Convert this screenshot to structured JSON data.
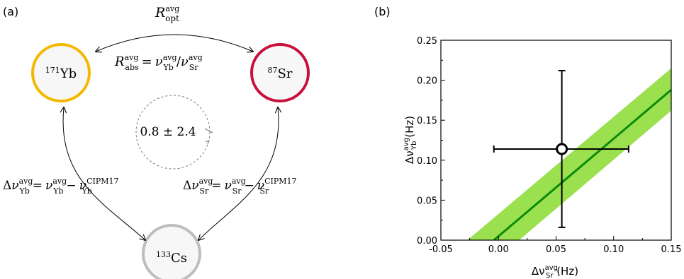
{
  "panel_a": {
    "label": "(a)",
    "nodes": {
      "yb": {
        "mass": "171",
        "symbol": "Yb",
        "color": "#F5B800"
      },
      "sr": {
        "mass": "87",
        "symbol": "Sr",
        "color": "#C8103E"
      },
      "cs": {
        "mass": "133",
        "symbol": "Cs",
        "color": "#BDBDBD"
      }
    },
    "r_opt": {
      "main": "R",
      "sup": "avg",
      "sub": "opt"
    },
    "r_abs": {
      "lhs_main": "R",
      "lhs_sup": "avg",
      "lhs_sub": "abs",
      "nu1_sup": "avg",
      "nu1_sub": "Yb",
      "nu2_sup": "avg",
      "nu2_sub": "Sr"
    },
    "delta_yb": {
      "sup": "avg",
      "sub": "Yb",
      "ref_sup": "CIPM17"
    },
    "delta_sr": {
      "sup": "avg",
      "sub": "Sr",
      "ref_sup": "CIPM17"
    },
    "loop_value": "0.8 ± 2.4"
  },
  "panel_b": {
    "label": "(b)",
    "xlabel": {
      "main": "Δν",
      "sup": "avg",
      "sub": "Sr",
      "unit": " (Hz)"
    },
    "ylabel": {
      "main": "Δν",
      "sup": "avg",
      "sub": "Yb",
      "unit": " (Hz)"
    }
  },
  "colors": {
    "fit_line": "#0A8A0A",
    "band": "#9BE04F"
  },
  "chart_data": {
    "type": "scatter",
    "xlim": [
      -0.05,
      0.15
    ],
    "ylim": [
      0.0,
      0.25
    ],
    "xticks": [
      "-0.05",
      "0.00",
      "0.05",
      "0.10",
      "0.15"
    ],
    "yticks": [
      "0.00",
      "0.05",
      "0.10",
      "0.15",
      "0.20",
      "0.25"
    ],
    "point": {
      "x": 0.055,
      "y": 0.114,
      "xerr": [
        0.059,
        0.058
      ],
      "yerr": [
        0.098,
        0.098
      ]
    },
    "fit_line": {
      "x": [
        -0.004,
        0.15
      ],
      "y": [
        0.0,
        0.188
      ]
    },
    "band_upper": {
      "x": [
        -0.027,
        0.15
      ],
      "y": [
        0.0,
        0.215
      ]
    },
    "band_lower": {
      "x": [
        0.018,
        0.15
      ],
      "y": [
        0.0,
        0.162
      ]
    }
  }
}
